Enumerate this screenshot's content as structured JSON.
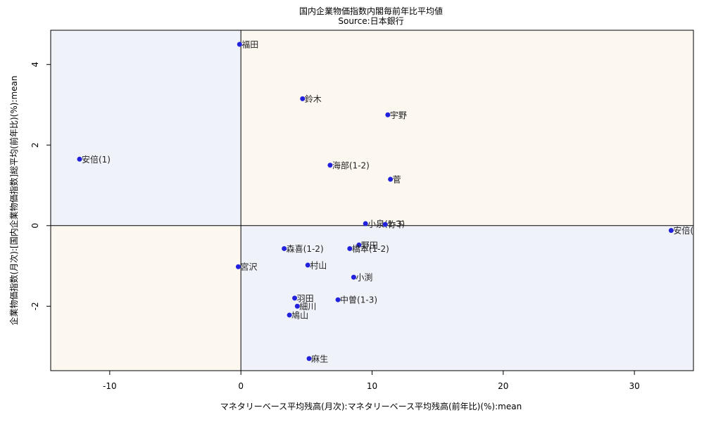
{
  "chart_data": {
    "type": "scatter",
    "title": "国内企業物価指数内閣毎前年比平均値",
    "subtitle": "Source:日本銀行",
    "xlabel": "マネタリーベース平均残高(月次):マネタリーベース平均残高(前年比)(%):mean",
    "ylabel": "企業物価指数(月次):[国内企業物価指数]総平均(前年比)(%):mean",
    "xlim": [
      -14.5,
      34.5
    ],
    "ylim": [
      -3.6,
      4.85
    ],
    "xticks": [
      -10,
      0,
      10,
      20,
      30
    ],
    "yticks": [
      -2,
      0,
      2,
      4
    ],
    "xtick_labels": [
      "-10",
      "0",
      "10",
      "20",
      "30"
    ],
    "ytick_labels": [
      "-2",
      "0",
      "2",
      "4"
    ],
    "grid": false,
    "quadrant_lines": {
      "x": 0,
      "y": 0
    },
    "colors": {
      "point": "#2222dd",
      "quadrant_positive": "#fcf8f0",
      "quadrant_negative": "#f0f2fa",
      "axis": "#000000"
    },
    "points": [
      {
        "label": "福田",
        "x": -0.1,
        "y": 4.5
      },
      {
        "label": "鈴木",
        "x": 4.7,
        "y": 3.15
      },
      {
        "label": "宇野",
        "x": 11.2,
        "y": 2.75
      },
      {
        "label": "安倍(1)",
        "x": -12.3,
        "y": 1.65
      },
      {
        "label": "海部(1-2)",
        "x": 6.8,
        "y": 1.5
      },
      {
        "label": "菅",
        "x": 11.4,
        "y": 1.15
      },
      {
        "label": "小泉(1-3)",
        "x": 9.5,
        "y": 0.05
      },
      {
        "label": "竹下",
        "x": 11.0,
        "y": 0.03
      },
      {
        "label": "安倍(",
        "x": 32.8,
        "y": -0.12
      },
      {
        "label": "野田",
        "x": 9.0,
        "y": -0.48
      },
      {
        "label": "森喜(1-2)",
        "x": 3.3,
        "y": -0.57
      },
      {
        "label": "橋本(1-2)",
        "x": 8.3,
        "y": -0.57
      },
      {
        "label": "宮沢",
        "x": -0.2,
        "y": -1.02
      },
      {
        "label": "村山",
        "x": 5.1,
        "y": -0.98
      },
      {
        "label": "小渕",
        "x": 8.6,
        "y": -1.28
      },
      {
        "label": "羽田",
        "x": 4.1,
        "y": -1.8
      },
      {
        "label": "中曽(1-3)",
        "x": 7.4,
        "y": -1.84
      },
      {
        "label": "細川",
        "x": 4.3,
        "y": -2.0
      },
      {
        "label": "鳩山",
        "x": 3.7,
        "y": -2.22
      },
      {
        "label": "麻生",
        "x": 5.2,
        "y": -3.3
      }
    ]
  }
}
